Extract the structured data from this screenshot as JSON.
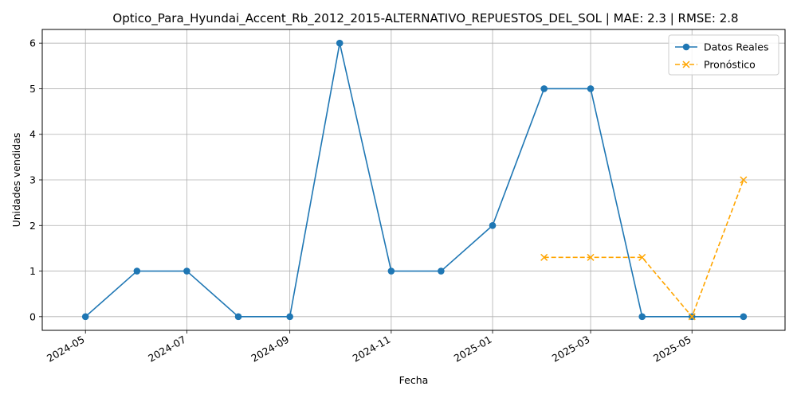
{
  "chart_data": {
    "type": "line",
    "title": "Optico_Para_Hyundai_Accent_Rb_2012_2015-ALTERNATIVO_REPUESTOS_DEL_SOL | MAE: 2.3 | RMSE: 2.8",
    "xlabel": "Fecha",
    "ylabel": "Unidades vendidas",
    "x_ticks": [
      "2024-05",
      "2024-07",
      "2024-09",
      "2024-11",
      "2025-01",
      "2025-03",
      "2025-05"
    ],
    "y_ticks": [
      0,
      1,
      2,
      3,
      4,
      5,
      6
    ],
    "ylim": [
      -0.3,
      6.3
    ],
    "xlim": [
      "2024-04-05",
      "2025-06-26"
    ],
    "grid": true,
    "legend_position": "top-right",
    "series": [
      {
        "name": "Datos Reales",
        "color": "#1f77b4",
        "marker": "circle",
        "linestyle": "solid",
        "points": [
          {
            "x": "2024-05-01",
            "y": 0
          },
          {
            "x": "2024-06-01",
            "y": 1
          },
          {
            "x": "2024-07-01",
            "y": 1
          },
          {
            "x": "2024-08-01",
            "y": 0
          },
          {
            "x": "2024-09-01",
            "y": 0
          },
          {
            "x": "2024-10-01",
            "y": 6
          },
          {
            "x": "2024-11-01",
            "y": 1
          },
          {
            "x": "2024-12-01",
            "y": 1
          },
          {
            "x": "2025-01-01",
            "y": 2
          },
          {
            "x": "2025-02-01",
            "y": 5
          },
          {
            "x": "2025-03-01",
            "y": 5
          },
          {
            "x": "2025-04-01",
            "y": 0
          },
          {
            "x": "2025-05-01",
            "y": 0
          },
          {
            "x": "2025-06-01",
            "y": 0
          }
        ]
      },
      {
        "name": "Pronóstico",
        "color": "#ffa500",
        "marker": "x",
        "linestyle": "dashed",
        "points": [
          {
            "x": "2025-02-01",
            "y": 1.3
          },
          {
            "x": "2025-03-01",
            "y": 1.3
          },
          {
            "x": "2025-04-01",
            "y": 1.3
          },
          {
            "x": "2025-05-01",
            "y": 0
          },
          {
            "x": "2025-06-01",
            "y": 3
          }
        ]
      }
    ]
  }
}
